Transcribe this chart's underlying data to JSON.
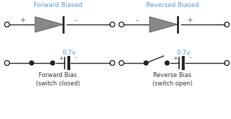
{
  "title_left": "Forward Biased",
  "title_right": "Reversed Biased",
  "label_left_bottom": "Forward Bias\n(switch closed)",
  "label_right_bottom": "Reverse Bias\n(switch open)",
  "voltage_label": "0.7v",
  "title_color": "#5599dd",
  "voltage_color": "#5599dd",
  "diode_fill": "#888888",
  "diode_edge": "#666666",
  "line_color": "#222222",
  "bg_color": "#ffffff",
  "plus_minus_color": "#555555",
  "label_color": "#333333",
  "figsize": [
    3.29,
    1.7
  ],
  "dpi": 100
}
